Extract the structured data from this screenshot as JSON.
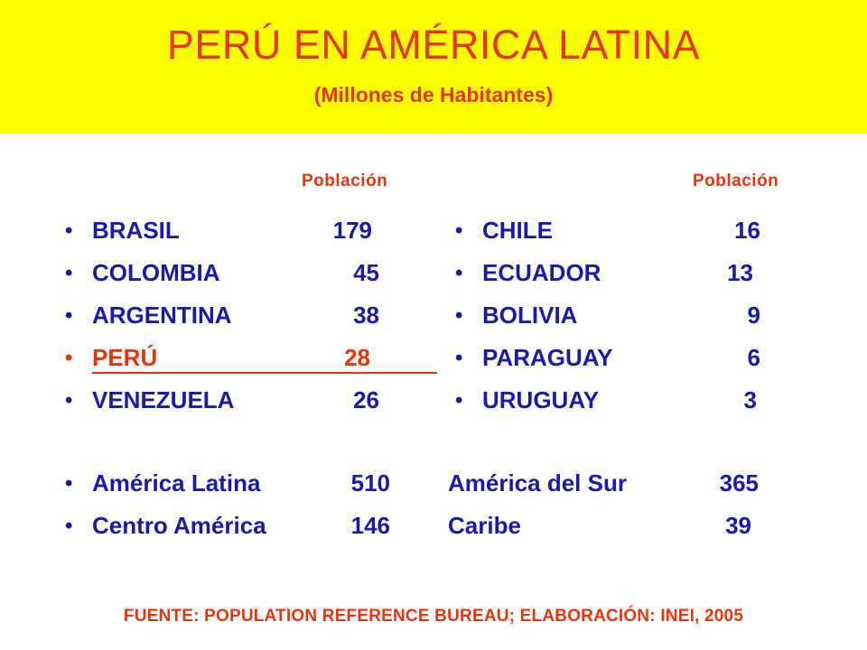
{
  "header": {
    "title": "PERÚ EN AMÉRICA LATINA",
    "subtitle": "(Millones de Habitantes)"
  },
  "columns": {
    "left_heading": "Población",
    "right_heading": "Población"
  },
  "left_list": [
    {
      "bullet": "•",
      "name": "BRASIL",
      "value": "179"
    },
    {
      "bullet": "•",
      "name": "COLOMBIA",
      "value": "45"
    },
    {
      "bullet": "•",
      "name": "ARGENTINA",
      "value": "38"
    },
    {
      "bullet": "•",
      "name": "PERÚ",
      "value": "28"
    },
    {
      "bullet": "•",
      "name": "VENEZUELA",
      "value": "26"
    }
  ],
  "left_totals": [
    {
      "bullet": "•",
      "name": "América Latina",
      "value": "510"
    },
    {
      "bullet": "•",
      "name": "Centro América",
      "value": "146"
    }
  ],
  "right_list": [
    {
      "bullet": "•",
      "name": "CHILE",
      "value": "16"
    },
    {
      "bullet": "•",
      "name": "ECUADOR",
      "value": "13"
    },
    {
      "bullet": "•",
      "name": "BOLIVIA",
      "value": "9"
    },
    {
      "bullet": "•",
      "name": "PARAGUAY",
      "value": "6"
    },
    {
      "bullet": "•",
      "name": "URUGUAY",
      "value": "3"
    }
  ],
  "right_totals": [
    {
      "name": "América del Sur",
      "value": "365"
    },
    {
      "name": "Caribe",
      "value": "39"
    }
  ],
  "source": "FUENTE: POPULATION REFERENCE BUREAU;  ELABORACIÓN: INEI, 2005",
  "colors": {
    "header_bg": "#ffff00",
    "accent": "#e8340c",
    "text": "#1a1aa8"
  }
}
